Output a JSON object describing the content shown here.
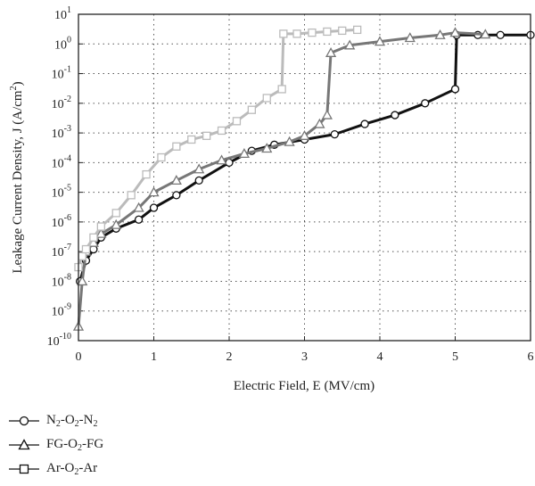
{
  "chart_data": {
    "type": "scatter",
    "xlabel": "Electric Field, E (MV/cm)",
    "ylabel_main": "Leakage Current Density, J (A/cm",
    "ylabel_sup": "2",
    "ylabel_end": ")",
    "xlim": [
      0,
      6
    ],
    "ylim_log10": [
      -10,
      1
    ],
    "y_scale": "log",
    "x_ticks": [
      "0",
      "1",
      "2",
      "3",
      "4",
      "5",
      "6"
    ],
    "y_tick_exponents": [
      "-10",
      "-9",
      "-8",
      "-7",
      "-6",
      "-5",
      "-4",
      "-3",
      "-2",
      "-1",
      "0",
      "1"
    ],
    "y_tick_base": "10",
    "grid": "dotted",
    "legend_position": "below",
    "series": [
      {
        "name_parts": [
          "N",
          "2",
          "-O",
          "2",
          "-N",
          "2"
        ],
        "marker": "circle",
        "color": "#111111",
        "x": [
          0.02,
          0.1,
          0.2,
          0.3,
          0.5,
          0.8,
          1.0,
          1.3,
          1.6,
          2.0,
          2.3,
          2.6,
          3.0,
          3.4,
          3.8,
          4.2,
          4.6,
          5.0,
          5.02,
          5.3,
          5.6,
          6.0
        ],
        "y": [
          1e-08,
          5e-08,
          1.2e-07,
          3e-07,
          6e-07,
          1.2e-06,
          3e-06,
          8e-06,
          2.5e-05,
          0.0001,
          0.00025,
          0.0004,
          0.0006,
          0.0009,
          0.002,
          0.004,
          0.01,
          0.03,
          2,
          2,
          2,
          2
        ]
      },
      {
        "name_parts": [
          "FG-O",
          "2",
          "-FG"
        ],
        "marker": "triangle",
        "color": "#777777",
        "x": [
          0.0,
          0.05,
          0.1,
          0.2,
          0.3,
          0.5,
          0.8,
          1.0,
          1.3,
          1.6,
          1.9,
          2.2,
          2.5,
          2.8,
          3.0,
          3.2,
          3.3,
          3.35,
          3.6,
          4.0,
          4.4,
          4.8,
          5.0,
          5.4
        ],
        "y": [
          3e-10,
          1e-08,
          1e-07,
          2e-07,
          4e-07,
          8e-07,
          3e-06,
          1e-05,
          2.5e-05,
          6e-05,
          0.00012,
          0.0002,
          0.0003,
          0.0005,
          0.0008,
          0.002,
          0.004,
          0.5,
          0.9,
          1.2,
          1.6,
          2,
          2.4,
          2.1
        ]
      },
      {
        "name_parts": [
          "Ar-O",
          "2",
          "-Ar"
        ],
        "marker": "square",
        "color": "#bbbbbb",
        "x": [
          0.0,
          0.05,
          0.1,
          0.2,
          0.3,
          0.5,
          0.7,
          0.9,
          1.1,
          1.3,
          1.5,
          1.7,
          1.9,
          2.1,
          2.3,
          2.5,
          2.7,
          2.72,
          2.9,
          3.1,
          3.3,
          3.5,
          3.7
        ],
        "y": [
          3e-08,
          7e-08,
          1.2e-07,
          3e-07,
          7e-07,
          2e-06,
          8e-06,
          4e-05,
          0.00015,
          0.00035,
          0.0006,
          0.0008,
          0.0012,
          0.0025,
          0.006,
          0.015,
          0.03,
          2.2,
          2.2,
          2.4,
          2.6,
          2.8,
          3
        ]
      }
    ]
  }
}
